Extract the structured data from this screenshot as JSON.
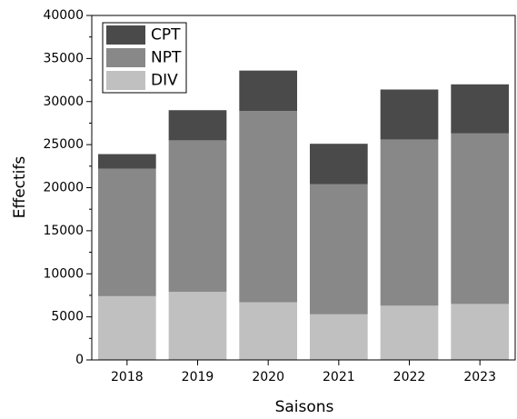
{
  "chart_data": {
    "type": "stacked_bar",
    "xlabel": "Saisons",
    "ylabel": "Effectifs",
    "categories": [
      "2018",
      "2019",
      "2020",
      "2021",
      "2022",
      "2023"
    ],
    "series": [
      {
        "name": "DIV",
        "color": "#c0c0c0",
        "values": [
          7400,
          7900,
          6700,
          5300,
          6300,
          6500
        ]
      },
      {
        "name": "NPT",
        "color": "#888888",
        "values": [
          14800,
          17600,
          22200,
          15100,
          19300,
          19800
        ]
      },
      {
        "name": "CPT",
        "color": "#4a4a4a",
        "values": [
          1700,
          3500,
          4700,
          4700,
          5800,
          5700
        ]
      }
    ],
    "ylim": [
      0,
      40000
    ],
    "yticks": [
      0,
      5000,
      10000,
      15000,
      20000,
      25000,
      30000,
      35000,
      40000
    ],
    "legend": "upper left"
  }
}
